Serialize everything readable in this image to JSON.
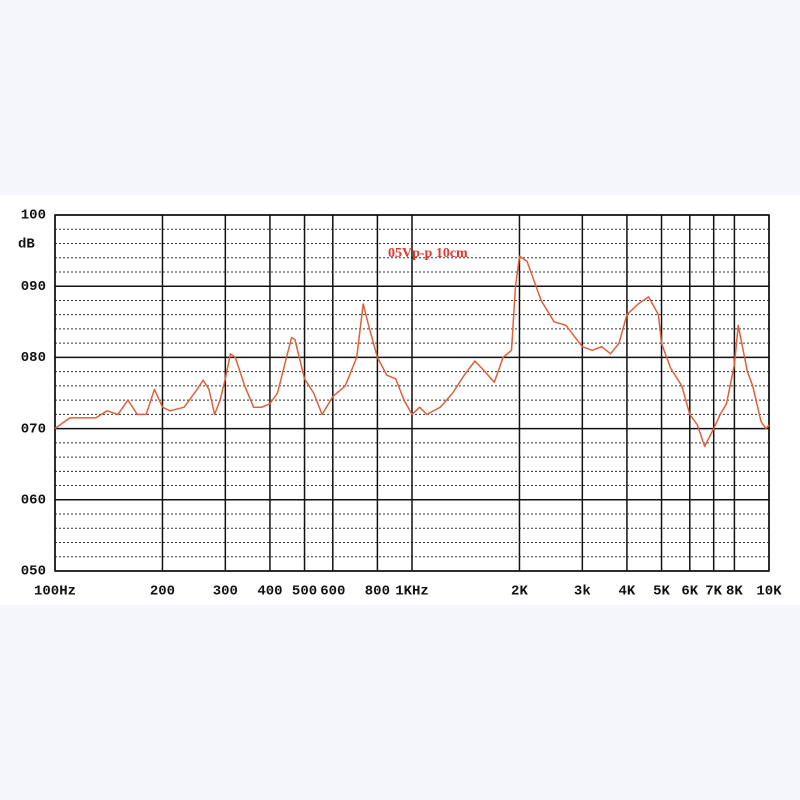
{
  "chart_data": {
    "type": "line",
    "y_label": "dB",
    "annotation": "05Vp-p 10cm",
    "x": [
      100,
      110,
      130,
      140,
      150,
      160,
      170,
      180,
      190,
      200,
      210,
      230,
      250,
      260,
      270,
      280,
      290,
      300,
      310,
      320,
      340,
      360,
      380,
      400,
      420,
      440,
      460,
      470,
      500,
      530,
      560,
      600,
      650,
      700,
      730,
      760,
      800,
      850,
      900,
      950,
      1000,
      1050,
      1100,
      1200,
      1300,
      1400,
      1500,
      1600,
      1700,
      1800,
      1900,
      1950,
      2000,
      2100,
      2300,
      2500,
      2700,
      3000,
      3200,
      3400,
      3600,
      3800,
      4000,
      4300,
      4600,
      4900,
      5000,
      5300,
      5700,
      6000,
      6300,
      6600,
      7000,
      7300,
      7600,
      8000,
      8200,
      8700,
      9000,
      9500,
      9800,
      10000
    ],
    "series": [
      {
        "color": "#e0603a",
        "values": [
          70,
          71.5,
          71.5,
          72.5,
          72,
          74,
          72,
          72,
          75.5,
          73,
          72.5,
          73,
          75.5,
          76.8,
          75.5,
          72,
          74,
          77,
          80.5,
          80,
          76,
          73,
          73,
          73.5,
          75,
          79,
          82.8,
          82.5,
          77,
          75,
          72,
          74.5,
          76,
          80,
          87.5,
          84,
          80,
          77.5,
          77,
          74,
          72,
          73,
          72,
          73,
          75,
          77.5,
          79.5,
          78,
          76.5,
          80,
          81,
          90,
          94.2,
          93.5,
          88,
          85,
          84.5,
          81.5,
          81,
          81.5,
          80.5,
          82,
          86,
          87.5,
          88.5,
          86,
          82,
          78.5,
          76,
          72,
          70.5,
          67.5,
          70,
          72,
          73.5,
          79,
          84.5,
          78,
          76,
          71,
          70,
          70.5
        ]
      }
    ],
    "xscale": "log",
    "xlim": [
      100,
      10000
    ],
    "ylim": [
      50,
      100
    ],
    "xticks": [
      {
        "value": 100,
        "label": "100Hz"
      },
      200,
      {
        "value": 300,
        "label": "300"
      },
      {
        "value": 400,
        "label": "400"
      },
      {
        "value": 500,
        "label": "500"
      },
      {
        "value": 600,
        "label": "600"
      },
      {
        "value": 800,
        "label": "800"
      },
      {
        "value": 1000,
        "label": "1KHz"
      },
      {
        "value": 2000,
        "label": "2K"
      },
      {
        "value": 3000,
        "label": "3k"
      },
      {
        "value": 4000,
        "label": "4K"
      },
      {
        "value": 5000,
        "label": "5K"
      },
      {
        "value": 6000,
        "label": "6K"
      },
      {
        "value": 7000,
        "label": "7K"
      },
      {
        "value": 8000,
        "label": "8K"
      },
      {
        "value": 10000,
        "label": "10K"
      }
    ],
    "yticks": [
      {
        "value": 50,
        "label": "050"
      },
      {
        "value": 60,
        "label": "060"
      },
      {
        "value": 70,
        "label": "070"
      },
      {
        "value": 80,
        "label": "080"
      },
      {
        "value": 90,
        "label": "090"
      },
      100
    ],
    "grid": true
  }
}
